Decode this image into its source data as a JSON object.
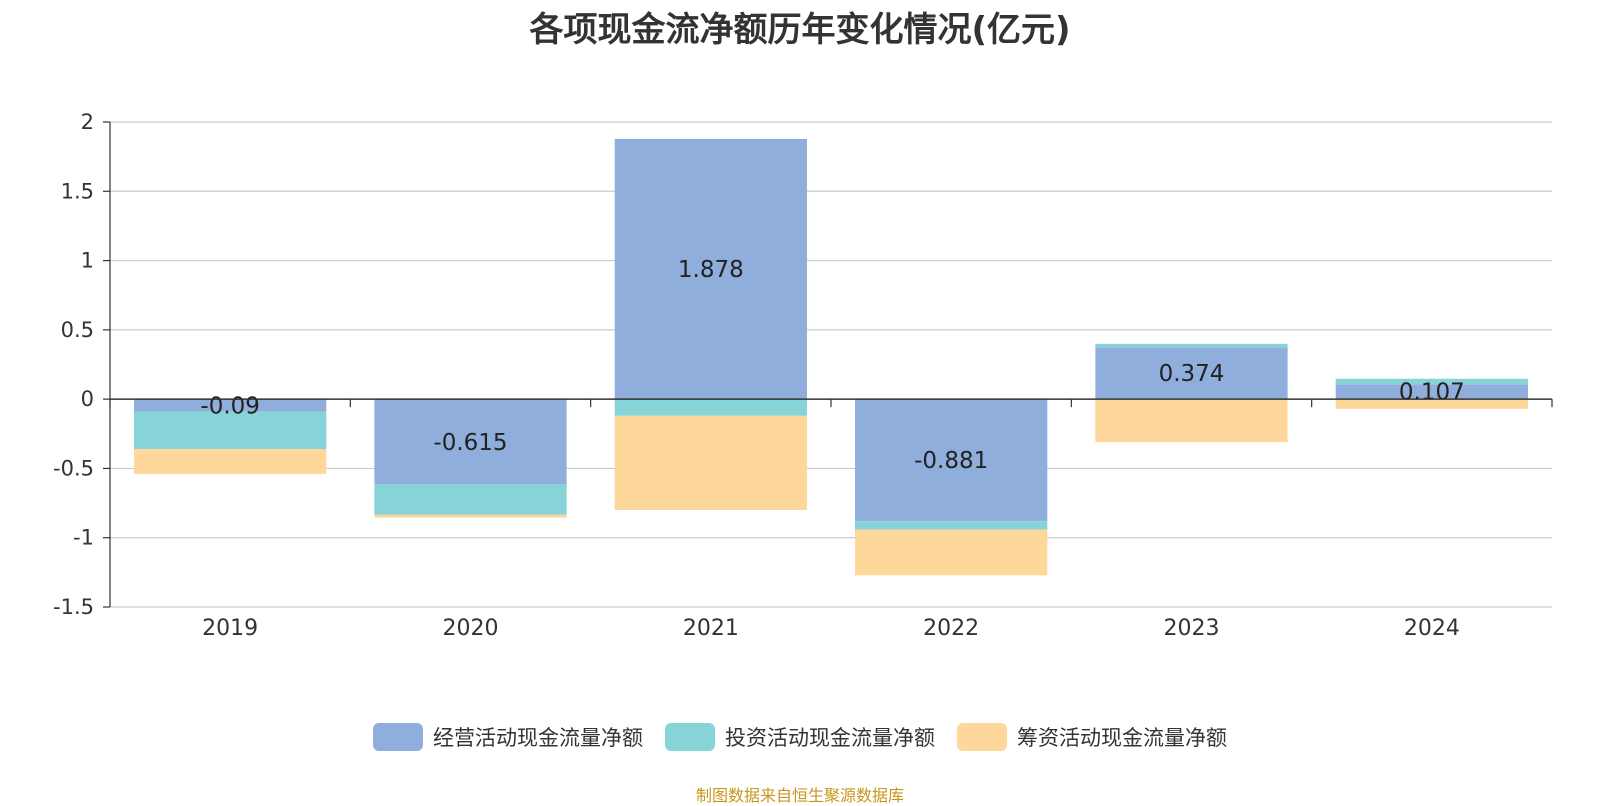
{
  "chart_data": {
    "type": "bar",
    "stacked": true,
    "title": "各项现金流净额历年变化情况(亿元)",
    "categories": [
      "2019",
      "2020",
      "2021",
      "2022",
      "2023",
      "2024"
    ],
    "ylim": [
      -1.5,
      2
    ],
    "yticks": [
      "2",
      "1.5",
      "1",
      "0.5",
      "0",
      "-0.5",
      "-1",
      "-1.5"
    ],
    "ytick_values": [
      2,
      1.5,
      1,
      0.5,
      0,
      -0.5,
      -1,
      -1.5
    ],
    "grid": true,
    "legend_position": "bottom",
    "series": [
      {
        "name": "经营活动现金流量净额",
        "color": "#8FAEDB",
        "values": [
          -0.09,
          -0.615,
          1.878,
          -0.881,
          0.374,
          0.107
        ],
        "labels": [
          "-0.09",
          "-0.615",
          "1.878",
          "-0.881",
          "0.374",
          "0.107"
        ]
      },
      {
        "name": "投资活动现金流量净额",
        "color": "#86D4D8",
        "values": [
          -0.27,
          -0.22,
          -0.12,
          -0.06,
          0.025,
          0.04
        ]
      },
      {
        "name": "筹资活动现金流量净额",
        "color": "#FDD89A",
        "values": [
          -0.18,
          -0.02,
          -0.68,
          -0.33,
          -0.31,
          -0.07
        ]
      }
    ]
  },
  "source": "制图数据来自恒生聚源数据库"
}
